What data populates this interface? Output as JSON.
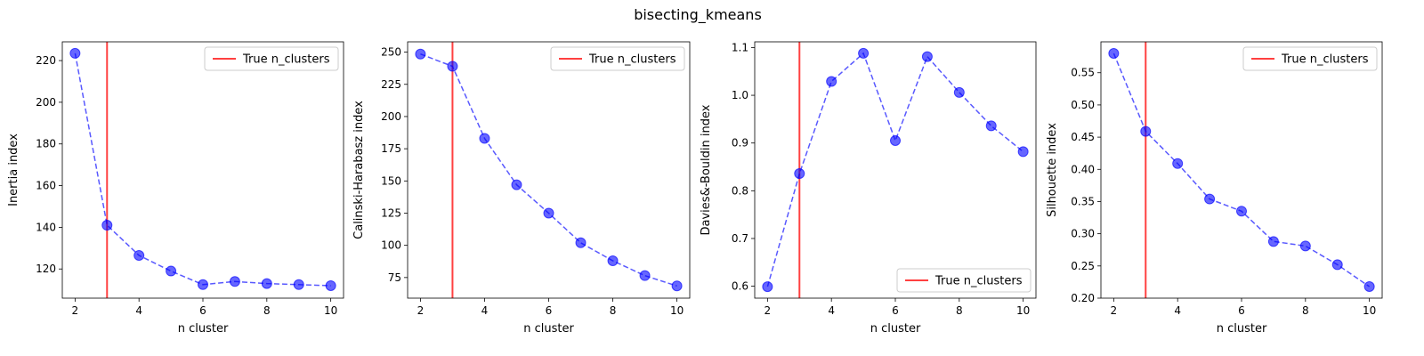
{
  "suptitle": "bisecting_kmeans",
  "chart_data": [
    {
      "type": "line",
      "x": [
        2,
        3,
        4,
        5,
        6,
        7,
        8,
        9,
        10
      ],
      "series": [
        {
          "values": [
            223.5,
            141,
            126.5,
            119,
            112.5,
            114,
            113,
            112.5,
            112
          ]
        }
      ],
      "xlabel": "n cluster",
      "ylabel": "Inertia index",
      "xticks": [
        2,
        4,
        6,
        8,
        10
      ],
      "yticks": [
        120,
        140,
        160,
        180,
        200,
        220
      ],
      "xlim": [
        1.6,
        10.4
      ],
      "ylim": [
        106,
        229
      ],
      "vline": {
        "x": 3,
        "label": "True n_clusters",
        "color": "#ff0000"
      },
      "legend": "upper right",
      "marker_color": "#0000ff"
    },
    {
      "type": "line",
      "x": [
        2,
        3,
        4,
        5,
        6,
        7,
        8,
        9,
        10
      ],
      "series": [
        {
          "values": [
            248.5,
            239,
            183,
            147,
            125,
            102,
            88,
            76.5,
            68.5
          ]
        }
      ],
      "xlabel": "n cluster",
      "ylabel": "Calinski-Harabasz index",
      "xticks": [
        2,
        4,
        6,
        8,
        10
      ],
      "yticks": [
        75,
        100,
        125,
        150,
        175,
        200,
        225,
        250
      ],
      "xlim": [
        1.6,
        10.4
      ],
      "ylim": [
        59,
        258
      ],
      "vline": {
        "x": 3,
        "label": "True n_clusters",
        "color": "#ff0000"
      },
      "legend": "upper right",
      "marker_color": "#0000ff"
    },
    {
      "type": "line",
      "x": [
        2,
        3,
        4,
        5,
        6,
        7,
        8,
        9,
        10
      ],
      "series": [
        {
          "values": [
            0.599,
            0.836,
            1.029,
            1.088,
            0.905,
            1.081,
            1.006,
            0.936,
            0.882
          ]
        }
      ],
      "xlabel": "n cluster",
      "ylabel": "Davies&-Bouldin index",
      "xticks": [
        2,
        4,
        6,
        8,
        10
      ],
      "yticks": [
        0.6,
        0.7,
        0.8,
        0.9,
        1.0,
        1.1
      ],
      "yticklabels": [
        "0.6",
        "0.7",
        "0.8",
        "0.9",
        "1.0",
        "1.1"
      ],
      "xlim": [
        1.6,
        10.4
      ],
      "ylim": [
        0.575,
        1.112
      ],
      "vline": {
        "x": 3,
        "label": "True n_clusters",
        "color": "#ff0000"
      },
      "legend": "lower right",
      "marker_color": "#0000ff"
    },
    {
      "type": "line",
      "x": [
        2,
        3,
        4,
        5,
        6,
        7,
        8,
        9,
        10
      ],
      "series": [
        {
          "values": [
            0.58,
            0.459,
            0.409,
            0.354,
            0.335,
            0.288,
            0.281,
            0.252,
            0.218
          ]
        }
      ],
      "xlabel": "n cluster",
      "ylabel": "Silhouette index",
      "xticks": [
        2,
        4,
        6,
        8,
        10
      ],
      "yticks": [
        0.2,
        0.25,
        0.3,
        0.35,
        0.4,
        0.45,
        0.5,
        0.55
      ],
      "yticklabels": [
        "0.20",
        "0.25",
        "0.30",
        "0.35",
        "0.40",
        "0.45",
        "0.50",
        "0.55"
      ],
      "xlim": [
        1.6,
        10.4
      ],
      "ylim": [
        0.2,
        0.598
      ],
      "vline": {
        "x": 3,
        "label": "True n_clusters",
        "color": "#ff0000"
      },
      "legend": "upper right",
      "marker_color": "#0000ff"
    }
  ]
}
